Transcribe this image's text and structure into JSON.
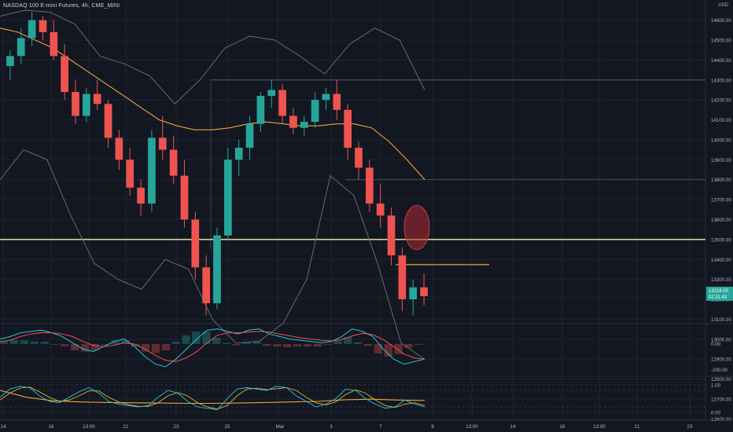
{
  "header": {
    "title": "NASDAQ 100 E-mini Futures, 4h, CME_MINI",
    "currency": "USD"
  },
  "colors": {
    "background": "#131722",
    "up": "#26a69a",
    "down": "#ef5350",
    "ma": "#f0a43a",
    "band": "#6b7280",
    "level": "#e8dfa0",
    "box": "#b89b3a",
    "signal": "#ef5350",
    "grid": "#1e2330",
    "axis_text": "#b2b5be"
  },
  "chart_data": [
    {
      "type": "candlestick",
      "title": "NASDAQ 100 E-mini Futures, 4h, CME_MINI",
      "ylabel": "USD",
      "ylim": [
        12550,
        14650
      ],
      "y_ticks": [
        12600,
        12700,
        12800,
        12900,
        13000,
        13100,
        13200,
        13300,
        13400,
        13500,
        13600,
        13700,
        13800,
        13900,
        14000,
        14100,
        14200,
        14300,
        14400,
        14500,
        14600
      ],
      "x_ticks": [
        "14",
        "16",
        "13:00",
        "21",
        "23",
        "25",
        "Mar",
        "3",
        "7",
        "9",
        "13:00",
        "14",
        "16",
        "13:00",
        "21",
        "23"
      ],
      "price_tags": [
        "13216.00",
        "02:31:43"
      ],
      "horizontal_levels": [
        13500,
        13800,
        14300,
        13042,
        13374
      ],
      "candles": [
        [
          14370,
          14450,
          14300,
          14420
        ],
        [
          14420,
          14560,
          14380,
          14510
        ],
        [
          14510,
          14640,
          14470,
          14600
        ],
        [
          14600,
          14620,
          14500,
          14540
        ],
        [
          14540,
          14600,
          14400,
          14420
        ],
        [
          14420,
          14480,
          14200,
          14240
        ],
        [
          14240,
          14300,
          14080,
          14120
        ],
        [
          14120,
          14260,
          14090,
          14230
        ],
        [
          14230,
          14300,
          14150,
          14180
        ],
        [
          14180,
          14200,
          13960,
          14010
        ],
        [
          14010,
          14050,
          13850,
          13900
        ],
        [
          13900,
          13960,
          13720,
          13760
        ],
        [
          13760,
          13800,
          13620,
          13680
        ],
        [
          13680,
          14050,
          13640,
          14010
        ],
        [
          14010,
          14120,
          13900,
          13950
        ],
        [
          13950,
          14020,
          13780,
          13820
        ],
        [
          13820,
          13900,
          13560,
          13600
        ],
        [
          13600,
          13640,
          13300,
          13360
        ],
        [
          13360,
          13420,
          13120,
          13180
        ],
        [
          13180,
          13560,
          13150,
          13520
        ],
        [
          13520,
          13960,
          13500,
          13900
        ],
        [
          13900,
          14000,
          13820,
          13960
        ],
        [
          13960,
          14120,
          13900,
          14080
        ],
        [
          14080,
          14240,
          14040,
          14220
        ],
        [
          14220,
          14300,
          14160,
          14250
        ],
        [
          14250,
          14280,
          14080,
          14120
        ],
        [
          14120,
          14160,
          14030,
          14060
        ],
        [
          14060,
          14120,
          14020,
          14090
        ],
        [
          14090,
          14240,
          14060,
          14200
        ],
        [
          14200,
          14260,
          14150,
          14230
        ],
        [
          14230,
          14300,
          14100,
          14150
        ],
        [
          14150,
          14180,
          13900,
          13960
        ],
        [
          13960,
          13990,
          13800,
          13860
        ],
        [
          13860,
          13900,
          13640,
          13680
        ],
        [
          13680,
          13780,
          13560,
          13620
        ],
        [
          13620,
          13660,
          13370,
          13420
        ],
        [
          13420,
          13460,
          13140,
          13200
        ],
        [
          13200,
          13300,
          13120,
          13260
        ],
        [
          13260,
          13330,
          13170,
          13216
        ]
      ],
      "ma_values": [
        14560,
        14540,
        14500,
        14460,
        14400,
        14340,
        14280,
        14220,
        14160,
        14100,
        14070,
        14050,
        14050,
        14060,
        14080,
        14090,
        14080,
        14070,
        14070,
        14080,
        14080,
        14060,
        13990,
        13900,
        13800
      ],
      "bollinger_upper": [
        14620,
        14650,
        14640,
        14580,
        14420,
        14380,
        14320,
        14180,
        14300,
        14460,
        14520,
        14500,
        14420,
        14330,
        14480,
        14560,
        14500,
        14250
      ],
      "bollinger_lower": [
        13800,
        13950,
        13900,
        13620,
        13380,
        13300,
        13250,
        13400,
        13350,
        13100,
        12980,
        12990,
        13080,
        13300,
        13820,
        13720,
        13380,
        12980,
        12900
      ]
    },
    {
      "type": "histogram+line",
      "y_ticks": [
        "0.00",
        "-200.00"
      ],
      "macd_line": [
        40,
        60,
        90,
        100,
        110,
        90,
        60,
        10,
        -40,
        -60,
        -20,
        20,
        40,
        -20,
        -100,
        -160,
        -180,
        -120,
        -40,
        40,
        110,
        120,
        100,
        80,
        110,
        120,
        80,
        60,
        40,
        30,
        20,
        10,
        20,
        60,
        120,
        100,
        60,
        -40,
        -120,
        -160,
        -140,
        -120
      ],
      "signal_line": [
        20,
        30,
        60,
        80,
        90,
        90,
        80,
        60,
        20,
        -10,
        -20,
        -10,
        10,
        0,
        -40,
        -90,
        -130,
        -140,
        -110,
        -60,
        10,
        70,
        90,
        90,
        95,
        100,
        95,
        80,
        65,
        50,
        40,
        30,
        25,
        35,
        65,
        85,
        75,
        35,
        -20,
        -80,
        -110,
        -120
      ],
      "histogram": [
        20,
        30,
        30,
        20,
        20,
        0,
        -20,
        -50,
        -60,
        -50,
        0,
        30,
        30,
        -20,
        -60,
        -70,
        -50,
        20,
        70,
        100,
        100,
        50,
        10,
        -10,
        15,
        20,
        -15,
        -20,
        -25,
        -20,
        -20,
        -20,
        -5,
        25,
        55,
        15,
        -15,
        -75,
        -100,
        -80,
        -30,
        0
      ]
    },
    {
      "type": "line",
      "y_ticks": [
        "1.00",
        "0.00"
      ],
      "stoch_k": [
        0.55,
        0.85,
        0.95,
        0.9,
        0.6,
        0.4,
        0.35,
        0.55,
        0.75,
        0.9,
        0.7,
        0.4,
        0.3,
        0.25,
        0.2,
        0.25,
        0.55,
        0.8,
        0.7,
        0.4,
        0.2,
        0.15,
        0.1,
        0.5,
        0.85,
        0.9,
        0.85,
        0.8,
        0.95,
        0.9,
        0.6,
        0.4,
        0.2,
        0.3,
        0.5,
        0.85,
        0.8,
        0.5,
        0.3,
        0.15,
        0.2,
        0.45,
        0.3,
        0.2
      ],
      "stoch_d": [
        0.45,
        0.7,
        0.88,
        0.92,
        0.75,
        0.55,
        0.4,
        0.45,
        0.6,
        0.78,
        0.78,
        0.55,
        0.38,
        0.28,
        0.22,
        0.22,
        0.35,
        0.6,
        0.72,
        0.6,
        0.35,
        0.2,
        0.12,
        0.25,
        0.6,
        0.85,
        0.88,
        0.83,
        0.86,
        0.9,
        0.8,
        0.55,
        0.35,
        0.27,
        0.38,
        0.65,
        0.82,
        0.7,
        0.45,
        0.25,
        0.18,
        0.3,
        0.35,
        0.25
      ],
      "slow_ma": [
        0.8,
        0.55,
        0.42,
        0.38,
        0.36,
        0.35,
        0.34,
        0.33,
        0.33,
        0.34,
        0.36,
        0.38,
        0.4,
        0.46,
        0.48,
        0.45,
        0.43
      ]
    }
  ]
}
